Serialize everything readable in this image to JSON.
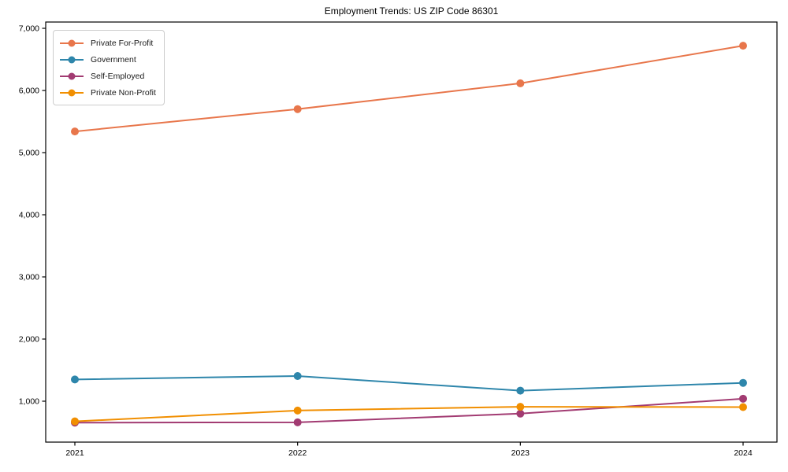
{
  "chart_data": {
    "type": "line",
    "title": "Employment Trends: US ZIP Code 86301",
    "xlabel": "",
    "ylabel": "",
    "x": [
      2021,
      2022,
      2023,
      2024
    ],
    "x_tick_labels": [
      "2021",
      "2022",
      "2023",
      "2024"
    ],
    "y_ticks": [
      1000,
      2000,
      3000,
      4000,
      5000,
      6000,
      7000
    ],
    "y_tick_labels": [
      "1,000",
      "2,000",
      "3,000",
      "4,000",
      "5,000",
      "6,000",
      "7,000"
    ],
    "ylim": [
      340,
      7100
    ],
    "grid": false,
    "legend_position": "upper-left",
    "series": [
      {
        "name": "Private For-Profit",
        "color": "#E8764B",
        "values": [
          5340,
          5700,
          6115,
          6720
        ]
      },
      {
        "name": "Government",
        "color": "#2E86AB",
        "values": [
          1350,
          1405,
          1170,
          1295
        ]
      },
      {
        "name": "Self-Employed",
        "color": "#A23B72",
        "values": [
          655,
          660,
          800,
          1040
        ]
      },
      {
        "name": "Private Non-Profit",
        "color": "#F18F01",
        "values": [
          675,
          850,
          910,
          905
        ]
      }
    ]
  }
}
